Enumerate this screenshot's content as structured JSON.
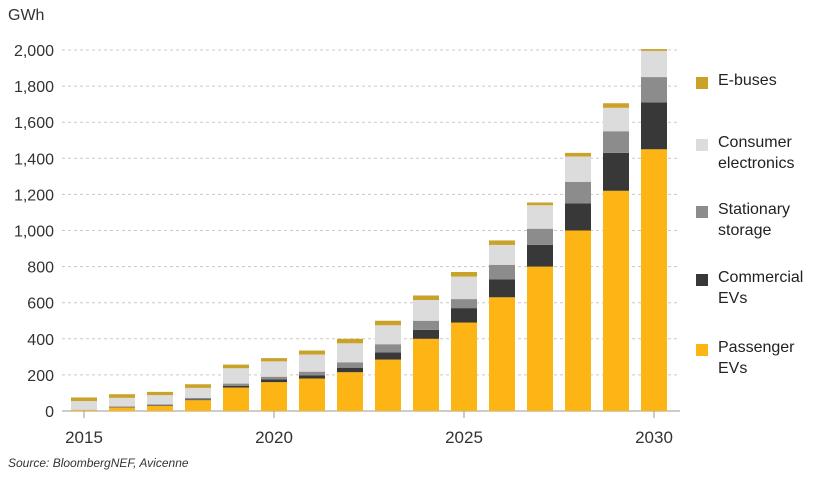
{
  "chart_data": {
    "type": "bar",
    "stacked": true,
    "unit": "GWh",
    "ylim": [
      0,
      2000
    ],
    "yticks": [
      "0",
      "200",
      "400",
      "600",
      "800",
      "1,000",
      "1,200",
      "1,400",
      "1,600",
      "1,800",
      "2,000"
    ],
    "ytick_values": [
      0,
      200,
      400,
      600,
      800,
      1000,
      1200,
      1400,
      1600,
      1800,
      2000
    ],
    "categories": [
      2015,
      2016,
      2017,
      2018,
      2019,
      2020,
      2021,
      2022,
      2023,
      2024,
      2025,
      2026,
      2027,
      2028,
      2029,
      2030
    ],
    "xtick_labels": [
      "2015",
      "2020",
      "2025",
      "2030"
    ],
    "grid": true,
    "legend_position": "right",
    "series": [
      {
        "name": "Passenger\nEVs",
        "color": "#FDB515",
        "values": [
          5,
          20,
          28,
          60,
          130,
          160,
          180,
          215,
          285,
          400,
          490,
          630,
          800,
          1000,
          1220,
          1450
        ]
      },
      {
        "name": "Commercial\nEVs",
        "color": "#383838",
        "values": [
          0,
          2,
          3,
          5,
          10,
          15,
          18,
          25,
          40,
          50,
          80,
          100,
          120,
          150,
          210,
          260
        ]
      },
      {
        "name": "Stationary\nstorage",
        "color": "#8C8C8C",
        "values": [
          2,
          3,
          5,
          8,
          12,
          15,
          20,
          30,
          45,
          50,
          50,
          80,
          90,
          120,
          120,
          140
        ]
      },
      {
        "name": "Consumer\nelectronics",
        "color": "#DCDCDC",
        "values": [
          48,
          48,
          52,
          55,
          85,
          85,
          95,
          105,
          105,
          115,
          125,
          110,
          130,
          140,
          130,
          145
        ]
      },
      {
        "name": "E-buses",
        "color": "#C9A227",
        "values": [
          20,
          20,
          18,
          20,
          20,
          18,
          22,
          25,
          25,
          25,
          25,
          25,
          15,
          20,
          25,
          10
        ]
      }
    ],
    "legend_order": [
      "E-buses",
      "Consumer\nelectronics",
      "Stationary\nstorage",
      "Commercial\nEVs",
      "Passenger\nEVs"
    ]
  },
  "source_text": "Source: BloombergNEF, Avicenne"
}
